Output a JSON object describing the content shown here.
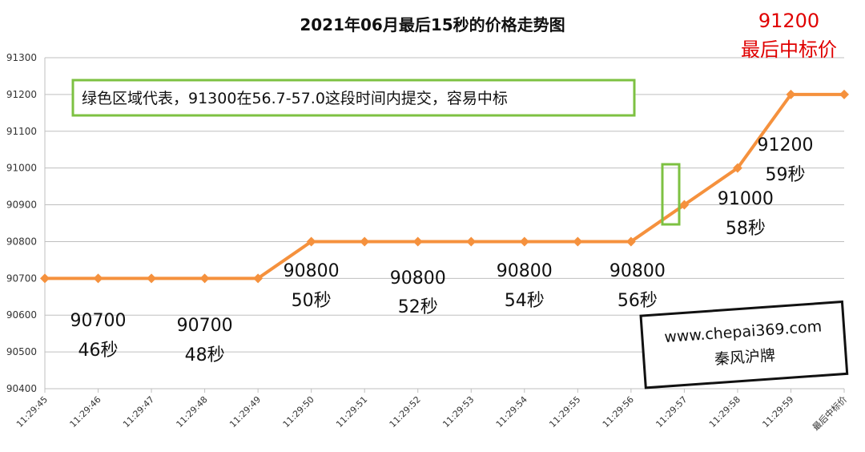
{
  "chart_data": {
    "type": "line",
    "title": "2021年06月最后15秒的价格走势图",
    "xlabel": "",
    "ylabel": "",
    "categories": [
      "11:29:45",
      "11:29:46",
      "11:29:47",
      "11:29:48",
      "11:29:49",
      "11:29:50",
      "11:29:51",
      "11:29:52",
      "11:29:53",
      "11:29:54",
      "11:29:55",
      "11:29:56",
      "11:29:57",
      "11:29:58",
      "11:29:59",
      "最后中标价"
    ],
    "series": [
      {
        "values": [
          90700,
          90700,
          90700,
          90700,
          90700,
          90800,
          90800,
          90800,
          90800,
          90800,
          90800,
          90800,
          90900,
          91000,
          91200,
          91200
        ]
      }
    ],
    "ylim": [
      90400,
      91300
    ],
    "yticks": [
      90400,
      90500,
      90600,
      90700,
      90800,
      90900,
      91000,
      91100,
      91200,
      91300
    ],
    "grid": true,
    "line_color": "#f5913d",
    "marker": "diamond",
    "annotations": [
      {
        "line1": "90700",
        "line2": "46秒"
      },
      {
        "line1": "90700",
        "line2": "48秒"
      },
      {
        "line1": "90800",
        "line2": "50秒"
      },
      {
        "line1": "90800",
        "line2": "52秒"
      },
      {
        "line1": "90800",
        "line2": "54秒"
      },
      {
        "line1": "90800",
        "line2": "56秒"
      },
      {
        "line1": "91000",
        "line2": "58秒"
      },
      {
        "line1": "91200",
        "line2": "59秒"
      }
    ],
    "final_label": {
      "line1": "91200",
      "line2": "最后中标价",
      "color": "#e00000"
    },
    "note_box": {
      "text": "绿色区域代表，91300在56.7-57.0这段时间内提交，容易中标",
      "color": "#7dc142"
    },
    "highlight_box_color": "#7dc142",
    "watermark": {
      "line1": "www.chepai369.com",
      "line2": "秦风沪牌"
    }
  }
}
